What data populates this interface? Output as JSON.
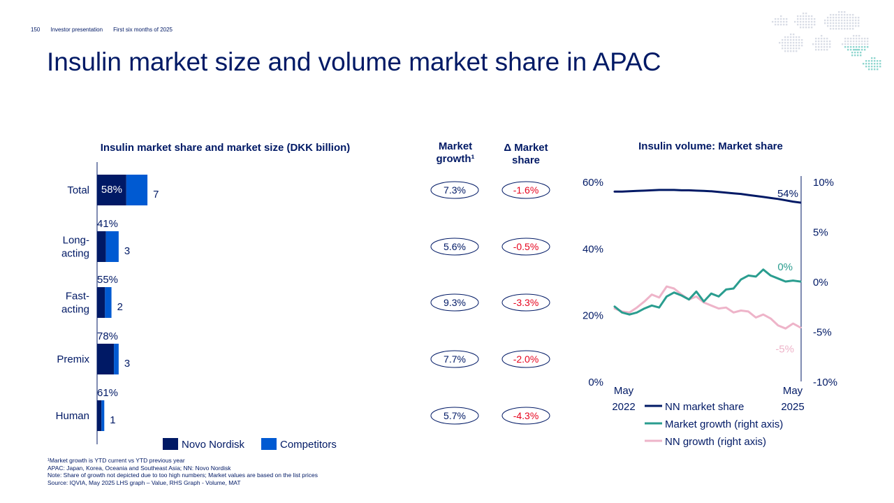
{
  "header": {
    "page_number": "150",
    "doc": "Investor presentation",
    "period": "First six months of 2025"
  },
  "title": "Insulin market size and volume market share in APAC",
  "left_chart_title": "Insulin market share and market size (DKK billion)",
  "market_growth_header": [
    "Market",
    "growth¹"
  ],
  "delta_share_header": [
    "Δ Market",
    "share"
  ],
  "right_chart_title": "Insulin volume: Market share",
  "colors": {
    "navy": "#001965",
    "blue": "#005ad2",
    "teal": "#2a9d8f",
    "pink": "#eeb4c9",
    "red": "#e6041e"
  },
  "chart_data": [
    {
      "type": "bar",
      "orientation": "horizontal-stacked",
      "title": "Insulin market share and market size (DKK billion)",
      "categories": [
        [
          "Total"
        ],
        [
          "Long-",
          "acting"
        ],
        [
          "Fast-",
          "acting"
        ],
        [
          "Premix"
        ],
        [
          "Human"
        ]
      ],
      "totals": [
        7,
        3,
        2,
        3,
        1
      ],
      "total_labels": [
        "7",
        "3",
        "2",
        "3",
        "1"
      ],
      "nn_share": [
        0.58,
        0.41,
        0.55,
        0.78,
        0.61
      ],
      "share_labels": [
        "58%",
        "41%",
        "55%",
        "78%",
        "61%"
      ],
      "series": [
        {
          "name": "Novo Nordisk",
          "color": "#001965"
        },
        {
          "name": "Competitors",
          "color": "#005ad2"
        }
      ],
      "market_growth": [
        "7.3%",
        "5.6%",
        "9.3%",
        "7.7%",
        "5.7%"
      ],
      "delta_market_share": [
        "-1.6%",
        "-0.5%",
        "-3.3%",
        "-2.0%",
        "-4.3%"
      ]
    },
    {
      "type": "line",
      "title": "Insulin volume: Market share",
      "x_labels": [
        [
          "May",
          "2022"
        ],
        [
          "May",
          "2025"
        ]
      ],
      "y_left": {
        "ticks": [
          "0%",
          "20%",
          "40%",
          "60%"
        ],
        "range": [
          0,
          60
        ]
      },
      "y_right": {
        "ticks": [
          "-10%",
          "-5%",
          "0%",
          "5%",
          "10%"
        ],
        "range": [
          -10,
          10
        ]
      },
      "series": [
        {
          "name": "NN market share",
          "axis": "left",
          "color": "#001965",
          "end_label": "54%",
          "values": [
            57,
            57,
            57.1,
            57.2,
            57.3,
            57.4,
            57.5,
            57.5,
            57.5,
            57.4,
            57.4,
            57.3,
            57.2,
            57.1,
            56.9,
            56.7,
            56.5,
            56.3,
            56.0,
            55.7,
            55.4,
            55.1,
            54.8,
            54.4,
            54.0,
            53.7
          ]
        },
        {
          "name": "Market growth (right axis)",
          "axis": "right",
          "color": "#2a9d8f",
          "end_label": "0%",
          "values": [
            -2.5,
            -3.1,
            -3.3,
            -3.1,
            -2.7,
            -2.4,
            -2.6,
            -1.5,
            -1.1,
            -1.4,
            -1.8,
            -1.0,
            -2.0,
            -1.2,
            -1.5,
            -0.8,
            -0.7,
            0.2,
            0.6,
            0.5,
            1.2,
            0.6,
            0.3,
            0.0,
            0.1,
            0.0
          ]
        },
        {
          "name": "NN growth (right axis)",
          "axis": "right",
          "color": "#eeb4c9",
          "end_label": "-5%",
          "values": [
            -2.7,
            -3.0,
            -3.1,
            -2.6,
            -2.0,
            -1.3,
            -1.6,
            -0.5,
            -0.7,
            -1.3,
            -1.8,
            -1.5,
            -2.1,
            -2.4,
            -2.7,
            -2.6,
            -3.1,
            -2.9,
            -3.0,
            -3.6,
            -3.3,
            -3.7,
            -4.4,
            -4.7,
            -4.2,
            -4.6
          ]
        }
      ]
    }
  ],
  "footnotes": [
    "¹Market growth is YTD current vs YTD previous year",
    "APAC: Japan, Korea, Oceania and Southeast Asia; NN: Novo Nordisk",
    "Note: Share of growth not depicted due to too high numbers; Market values are based on the list prices",
    "Source: IQVIA, May 2025 LHS graph – Value, RHS Graph - Volume, MAT"
  ]
}
